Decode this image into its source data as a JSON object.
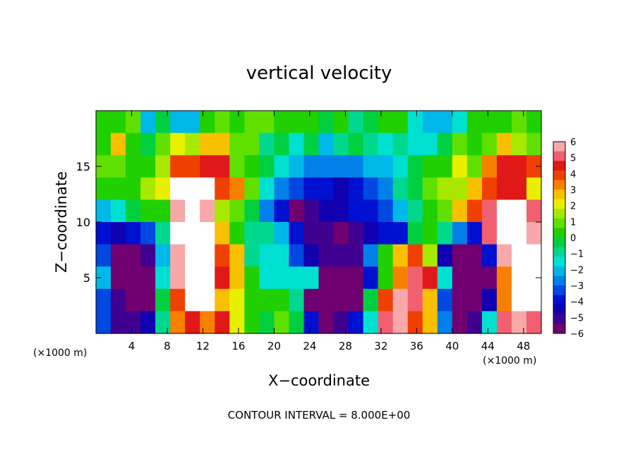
{
  "chart_data": {
    "type": "heatmap",
    "title": "vertical velocity",
    "xlabel": "X−coordinate",
    "ylabel": "Z−coordinate",
    "x_unit_left": "(×1000 m)",
    "x_unit_right": "(×1000 m)",
    "footer": "CONTOUR INTERVAL = 8.000E+00",
    "xlim": [
      0,
      50
    ],
    "ylim": [
      0,
      20
    ],
    "x_ticks": [
      4,
      8,
      12,
      16,
      20,
      24,
      28,
      32,
      36,
      40,
      44,
      48
    ],
    "x_tick_labels": [
      "4",
      "8",
      "12",
      "16",
      "20",
      "24",
      "28",
      "32",
      "36",
      "40",
      "44",
      "48"
    ],
    "y_ticks": [
      5,
      10,
      15
    ],
    "y_tick_labels": [
      "5",
      "10",
      "15"
    ],
    "colorbar": {
      "min": -6,
      "max": 6,
      "tick_labels": [
        "6",
        "5",
        "4",
        "3",
        "2",
        "1",
        "0",
        "−1",
        "−2",
        "−3",
        "−4",
        "−5",
        "−6"
      ],
      "colors": [
        "#f8a8a8",
        "#f06070",
        "#e01818",
        "#f04000",
        "#f88000",
        "#f8c000",
        "#e8f000",
        "#a8e800",
        "#60e000",
        "#20d000",
        "#00d040",
        "#00d890",
        "#00e0d0",
        "#00b8e8",
        "#0080e8",
        "#0048e0",
        "#0010d0",
        "#1000b0",
        "#400090",
        "#700070"
      ]
    },
    "cells": [
      [
        0.0,
        0.32,
        0.67,
        -2.08,
        -0.44,
        -1.93,
        -2.31,
        0.49,
        0.87,
        0.2,
        0.85,
        0.74,
        0.39,
        0.52,
        0.35,
        -0.49,
        0.51,
        -0.99,
        -0.32,
        0.48,
        0.17,
        -1.74,
        -2.06,
        -1.82,
        -1.27,
        0.24,
        0.29,
        0.5,
        0.63,
        0.53
      ],
      [
        0.57,
        2.57,
        0.09,
        -0.54,
        0.84,
        2.22,
        1.38,
        2.95,
        2.58,
        1.02,
        1.09,
        -0.93,
        -0.19,
        -1.28,
        -0.04,
        -1.96,
        -0.71,
        -0.38,
        -1.08,
        -1.55,
        -1.09,
        -1.46,
        -1.27,
        -0.55,
        0.95,
        0.41,
        0.8,
        2.51,
        1.64,
        0.96
      ],
      [
        1.09,
        0.96,
        0.33,
        0.07,
        1.41,
        3.72,
        4.17,
        4.41,
        4.3,
        0.92,
        0.54,
        -0.06,
        -1.35,
        -1.91,
        -2.56,
        -2.67,
        -2.81,
        -2.82,
        -2.29,
        -1.82,
        -1.78,
        -0.48,
        0.32,
        0.12,
        1.85,
        1.05,
        3.01,
        4.2,
        4.41,
        3.64
      ],
      [
        0.31,
        0.28,
        0.11,
        1.34,
        2.33,
        6.08,
        7.24,
        6.18,
        3.96,
        3.34,
        1.0,
        -1.26,
        -2.69,
        -3.38,
        -4.05,
        -4.03,
        -4.5,
        -4.12,
        -3.09,
        -2.45,
        -1.18,
        -0.22,
        0.62,
        1.41,
        1.38,
        2.74,
        3.92,
        4.35,
        4.48,
        2.13
      ],
      [
        -2.33,
        -1.58,
        -0.49,
        0.02,
        0.59,
        6.0,
        8.0,
        6.0,
        1.29,
        1.06,
        -0.12,
        -2.72,
        -4.0,
        -5.45,
        -4.95,
        -4.61,
        -4.48,
        -4.19,
        -4.02,
        -3.32,
        -2.38,
        -0.82,
        0.36,
        1.19,
        2.69,
        3.73,
        5.0,
        8.0,
        7.0,
        4.87
      ],
      [
        -4.2,
        -4.51,
        -3.6,
        -3.19,
        -0.66,
        6.24,
        8.0,
        7.0,
        2.89,
        0.47,
        -0.91,
        -1.1,
        -2.23,
        -3.97,
        -4.92,
        -5.38,
        -5.57,
        -5.27,
        -4.57,
        -3.81,
        -3.65,
        -0.36,
        0.25,
        -0.62,
        -2.75,
        -4.05,
        5.0,
        8.0,
        8.0,
        5.44
      ],
      [
        -3.44,
        -6.0,
        -7.0,
        -4.94,
        -2.07,
        5.92,
        8.0,
        8.0,
        3.87,
        2.5,
        -0.68,
        -1.78,
        -1.59,
        -3.56,
        -4.53,
        -5.39,
        -5.11,
        -5.13,
        -2.99,
        0.42,
        2.48,
        3.92,
        1.63,
        -4.29,
        -7.0,
        -8.0,
        -3.91,
        5.61,
        8.0,
        8.0
      ],
      [
        -2.11,
        -7.0,
        -8.0,
        -6.31,
        -1.54,
        5.98,
        8.0,
        8.0,
        4.47,
        2.45,
        0.5,
        -1.42,
        -1.24,
        -1.8,
        -1.74,
        -8.0,
        -8.0,
        -6.98,
        -4.13,
        0.0,
        3.06,
        5.24,
        4.65,
        -1.48,
        -6.0,
        -8.0,
        -6.1,
        3.06,
        8.0,
        8.0
      ],
      [
        -3.19,
        -5.01,
        -8.0,
        -6.61,
        -0.51,
        3.98,
        8.0,
        6.61,
        2.48,
        1.89,
        0.32,
        0.0,
        0.0,
        -1.14,
        -6.0,
        -8.0,
        -8.0,
        -5.49,
        -0.15,
        3.73,
        5.61,
        5.0,
        2.69,
        -3.48,
        -8.0,
        -8.0,
        -4.26,
        3.54,
        8.0,
        8.0
      ],
      [
        -3.53,
        -5.03,
        -5.27,
        -4.31,
        -1.08,
        3.01,
        4.41,
        3.43,
        4.27,
        1.8,
        0.16,
        -0.04,
        1.14,
        -0.39,
        -4.0,
        -6.0,
        -5.12,
        -3.9,
        -1.35,
        5.3,
        6.0,
        3.68,
        2.43,
        -2.71,
        -6.0,
        -5.16,
        -1.47,
        5.07,
        5.71,
        4.93
      ]
    ]
  }
}
